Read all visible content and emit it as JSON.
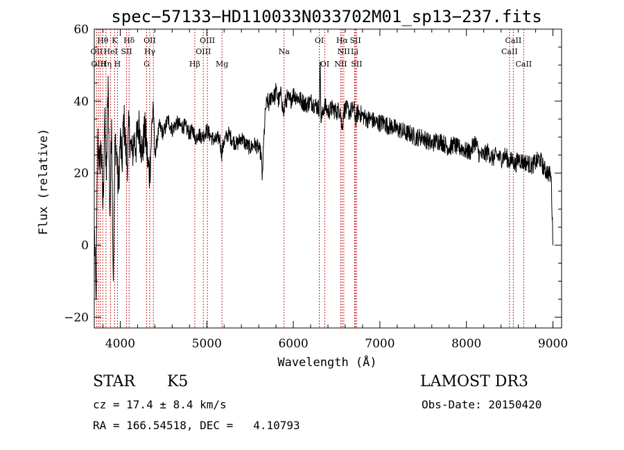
{
  "chart_data": {
    "type": "line",
    "title": "spec−57133−HD110033N033702M01_sp13−237.fits",
    "xlabel": "Wavelength (Å)",
    "ylabel": "Flux (relative)",
    "xlim": [
      3700,
      9100
    ],
    "ylim": [
      -23,
      60
    ],
    "xticks": [
      4000,
      5000,
      6000,
      7000,
      8000,
      9000
    ],
    "yticks": [
      -20,
      0,
      20,
      40,
      60
    ],
    "ytick_labels": [
      "−20",
      "0",
      "20",
      "40",
      "60"
    ],
    "grid": false,
    "legend": "none",
    "series": [
      {
        "values_approx": true,
        "points": [
          [
            3700,
            5
          ],
          [
            3720,
            -15
          ],
          [
            3740,
            30
          ],
          [
            3760,
            22
          ],
          [
            3780,
            28
          ],
          [
            3800,
            10
          ],
          [
            3820,
            35
          ],
          [
            3840,
            18
          ],
          [
            3860,
            47
          ],
          [
            3880,
            8
          ],
          [
            3900,
            35
          ],
          [
            3920,
            -10
          ],
          [
            3940,
            30
          ],
          [
            3960,
            25
          ],
          [
            3980,
            15
          ],
          [
            4000,
            30
          ],
          [
            4020,
            22
          ],
          [
            4040,
            36
          ],
          [
            4060,
            28
          ],
          [
            4080,
            22
          ],
          [
            4100,
            33
          ],
          [
            4120,
            28
          ],
          [
            4140,
            25
          ],
          [
            4160,
            30
          ],
          [
            4180,
            27
          ],
          [
            4200,
            31
          ],
          [
            4220,
            33
          ],
          [
            4240,
            28
          ],
          [
            4260,
            26
          ],
          [
            4280,
            32
          ],
          [
            4300,
            29
          ],
          [
            4320,
            22
          ],
          [
            4340,
            20
          ],
          [
            4360,
            30
          ],
          [
            4380,
            40
          ],
          [
            4400,
            25
          ],
          [
            4420,
            28
          ],
          [
            4450,
            33
          ],
          [
            4500,
            31
          ],
          [
            4550,
            35
          ],
          [
            4600,
            32
          ],
          [
            4650,
            34
          ],
          [
            4700,
            33
          ],
          [
            4750,
            33
          ],
          [
            4800,
            31
          ],
          [
            4850,
            32
          ],
          [
            4860,
            29
          ],
          [
            4900,
            31
          ],
          [
            4950,
            30
          ],
          [
            5000,
            32
          ],
          [
            5050,
            30
          ],
          [
            5100,
            29
          ],
          [
            5150,
            30
          ],
          [
            5170,
            25
          ],
          [
            5200,
            29
          ],
          [
            5250,
            31
          ],
          [
            5300,
            29
          ],
          [
            5350,
            28
          ],
          [
            5400,
            30
          ],
          [
            5450,
            28
          ],
          [
            5500,
            27
          ],
          [
            5550,
            28
          ],
          [
            5600,
            27
          ],
          [
            5630,
            25
          ],
          [
            5640,
            18
          ],
          [
            5660,
            30
          ],
          [
            5680,
            38
          ],
          [
            5700,
            40
          ],
          [
            5720,
            39
          ],
          [
            5750,
            42
          ],
          [
            5780,
            41
          ],
          [
            5800,
            43
          ],
          [
            5830,
            40
          ],
          [
            5860,
            42
          ],
          [
            5890,
            36
          ],
          [
            5900,
            39
          ],
          [
            5930,
            41
          ],
          [
            5960,
            40
          ],
          [
            6000,
            42
          ],
          [
            6050,
            41
          ],
          [
            6100,
            40
          ],
          [
            6150,
            39
          ],
          [
            6200,
            40
          ],
          [
            6250,
            39
          ],
          [
            6300,
            38
          ],
          [
            6310,
            51
          ],
          [
            6320,
            34
          ],
          [
            6340,
            37
          ],
          [
            6360,
            39
          ],
          [
            6380,
            38
          ],
          [
            6400,
            37
          ],
          [
            6450,
            38
          ],
          [
            6500,
            37
          ],
          [
            6540,
            38
          ],
          [
            6563,
            32
          ],
          [
            6580,
            37
          ],
          [
            6600,
            38
          ],
          [
            6650,
            37
          ],
          [
            6700,
            38
          ],
          [
            6720,
            35
          ],
          [
            6750,
            37
          ],
          [
            6800,
            36
          ],
          [
            6850,
            35
          ],
          [
            6900,
            35
          ],
          [
            6950,
            34
          ],
          [
            7000,
            34
          ],
          [
            7050,
            34
          ],
          [
            7100,
            33
          ],
          [
            7150,
            33
          ],
          [
            7200,
            32
          ],
          [
            7250,
            32
          ],
          [
            7300,
            31
          ],
          [
            7350,
            31
          ],
          [
            7400,
            30
          ],
          [
            7450,
            30
          ],
          [
            7500,
            30
          ],
          [
            7550,
            29
          ],
          [
            7600,
            28
          ],
          [
            7650,
            29
          ],
          [
            7700,
            29
          ],
          [
            7750,
            28
          ],
          [
            7800,
            27
          ],
          [
            7850,
            28
          ],
          [
            7900,
            27
          ],
          [
            7950,
            27
          ],
          [
            8000,
            26
          ],
          [
            8050,
            26
          ],
          [
            8100,
            29
          ],
          [
            8150,
            25
          ],
          [
            8200,
            25
          ],
          [
            8250,
            26
          ],
          [
            8300,
            24
          ],
          [
            8350,
            25
          ],
          [
            8400,
            24
          ],
          [
            8450,
            25
          ],
          [
            8500,
            23
          ],
          [
            8540,
            24
          ],
          [
            8560,
            22
          ],
          [
            8600,
            24
          ],
          [
            8660,
            23
          ],
          [
            8700,
            23
          ],
          [
            8750,
            22
          ],
          [
            8800,
            23
          ],
          [
            8850,
            24
          ],
          [
            8900,
            21
          ],
          [
            8950,
            20
          ],
          [
            8980,
            19
          ],
          [
            9000,
            0
          ]
        ]
      }
    ],
    "annotations": [
      {
        "text": "Hθ",
        "x": 3798,
        "row": 1
      },
      {
        "text": "K",
        "x": 3934,
        "row": 1
      },
      {
        "text": "Hδ",
        "x": 4102,
        "row": 1
      },
      {
        "text": "OII",
        "x": 4341,
        "row": 1
      },
      {
        "text": "OIII",
        "x": 5007,
        "row": 1
      },
      {
        "text": "OI",
        "x": 6300,
        "row": 1
      },
      {
        "text": "Hα",
        "x": 6563,
        "row": 1
      },
      {
        "text": "SII",
        "x": 6717,
        "row": 1
      },
      {
        "text": "CaII",
        "x": 8542,
        "row": 1
      },
      {
        "text": "OII",
        "x": 3727,
        "row": 2
      },
      {
        "text": "HeI",
        "x": 3889,
        "row": 2
      },
      {
        "text": "SII",
        "x": 4072,
        "row": 2
      },
      {
        "text": "Hγ",
        "x": 4341,
        "row": 2
      },
      {
        "text": "OIII",
        "x": 4960,
        "row": 2
      },
      {
        "text": "Na",
        "x": 5893,
        "row": 2
      },
      {
        "text": "NII",
        "x": 6583,
        "row": 2
      },
      {
        "text": "Li",
        "x": 6708,
        "row": 2
      },
      {
        "text": "CaII",
        "x": 8498,
        "row": 2
      },
      {
        "text": "OIII",
        "x": 3750,
        "row": 3
      },
      {
        "text": "Hη",
        "x": 3835,
        "row": 3
      },
      {
        "text": "H",
        "x": 3968,
        "row": 3
      },
      {
        "text": "G",
        "x": 4305,
        "row": 3
      },
      {
        "text": "Hβ",
        "x": 4861,
        "row": 3
      },
      {
        "text": "Mg",
        "x": 5175,
        "row": 3
      },
      {
        "text": "OI",
        "x": 6363,
        "row": 3
      },
      {
        "text": "NII",
        "x": 6548,
        "row": 3
      },
      {
        "text": "SII",
        "x": 6731,
        "row": 3
      },
      {
        "text": "CaII",
        "x": 8662,
        "row": 3
      }
    ],
    "line_markers": [
      3727,
      3750,
      3770,
      3798,
      3835,
      3889,
      3934,
      3968,
      4072,
      4102,
      4305,
      4341,
      4383,
      4861,
      4960,
      5007,
      5175,
      5893,
      6300,
      6363,
      6548,
      6563,
      6583,
      6708,
      6717,
      6731,
      8498,
      8542,
      8662
    ]
  },
  "info": {
    "object_class": "STAR",
    "subclass": "K5",
    "survey": "LAMOST DR3",
    "redshift": "cz = 17.4 ± 8.4 km/s",
    "obs_date": "Obs-Date: 20150420",
    "coords": "RA = 166.54518, DEC =   4.10793"
  },
  "colors": {
    "spectrum": "#000000",
    "marker_lines": "#cc2222",
    "axes": "#000000"
  }
}
